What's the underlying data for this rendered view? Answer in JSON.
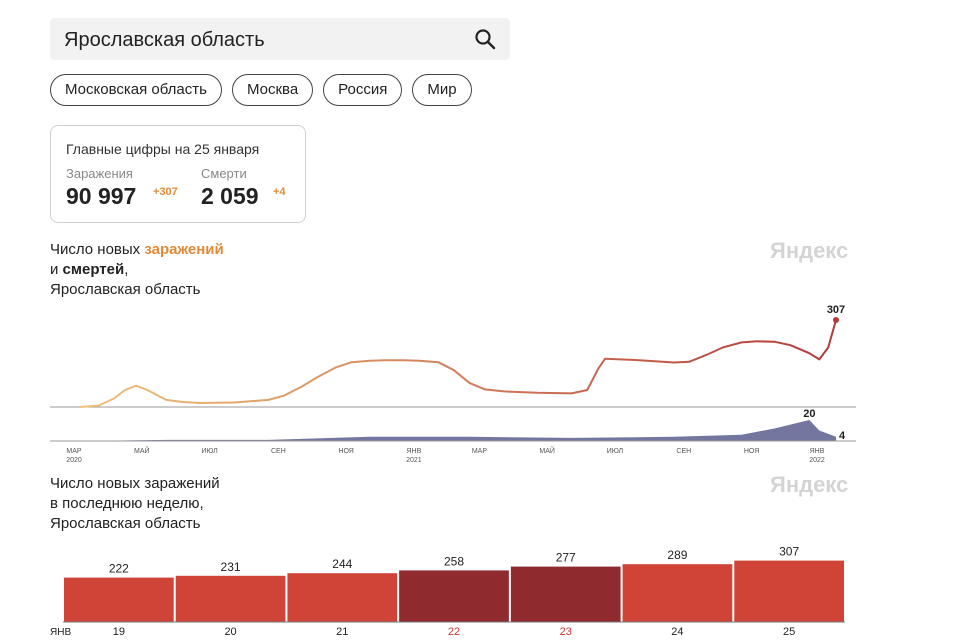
{
  "search": {
    "value": "Ярославская область"
  },
  "chips": [
    "Московская область",
    "Москва",
    "Россия",
    "Мир"
  ],
  "summary": {
    "title": "Главные цифры на 25 января",
    "infections": {
      "label": "Заражения",
      "value": "90 997",
      "delta": "+307"
    },
    "deaths": {
      "label": "Смерти",
      "value": "2 059",
      "delta": "+4"
    }
  },
  "chart1": {
    "title_line1_prefix": "Число новых ",
    "title_line1_highlight": "заражений",
    "title_line2_prefix": "и ",
    "title_line2_highlight": "смертей",
    "title_line2_suffix": ",",
    "title_line3": "Ярославская область",
    "watermark": "Яндекс"
  },
  "chart2": {
    "title_line1": "Число новых заражений",
    "title_line2": "в последнюю неделю,",
    "title_line3": "Ярославская область",
    "watermark": "Яндекс"
  },
  "colors": {
    "infections_start": "#f0c27a",
    "infections_end": "#b23a3a",
    "deaths": "#5a5f8e",
    "bar_weekday": "#cf4436",
    "bar_weekend": "#8f2a2e",
    "weekend_label": "#cc3333"
  },
  "chart_data": [
    {
      "type": "line",
      "x_labels": [
        {
          "month": "МАР",
          "year": "2020"
        },
        {
          "month": "МАЙ",
          "year": ""
        },
        {
          "month": "ИЮЛ",
          "year": ""
        },
        {
          "month": "СЕН",
          "year": ""
        },
        {
          "month": "НОЯ",
          "year": ""
        },
        {
          "month": "ЯНВ",
          "year": "2021"
        },
        {
          "month": "МАР",
          "year": ""
        },
        {
          "month": "МАЙ",
          "year": ""
        },
        {
          "month": "ИЮЛ",
          "year": ""
        },
        {
          "month": "СЕН",
          "year": ""
        },
        {
          "month": "НОЯ",
          "year": ""
        },
        {
          "month": "ЯНВ",
          "year": "2022"
        }
      ],
      "series": [
        {
          "name": "Заражения",
          "x": [
            "2020-03-15",
            "2020-04-01",
            "2020-04-15",
            "2020-04-25",
            "2020-05-05",
            "2020-05-15",
            "2020-06-01",
            "2020-06-15",
            "2020-07-01",
            "2020-08-01",
            "2020-09-01",
            "2020-09-15",
            "2020-10-01",
            "2020-10-15",
            "2020-11-01",
            "2020-11-15",
            "2020-12-01",
            "2020-12-15",
            "2021-01-01",
            "2021-01-15",
            "2021-02-01",
            "2021-02-15",
            "2021-03-01",
            "2021-03-15",
            "2021-04-01",
            "2021-05-01",
            "2021-06-01",
            "2021-06-15",
            "2021-06-25",
            "2021-07-01",
            "2021-07-15",
            "2021-08-01",
            "2021-09-01",
            "2021-09-15",
            "2021-10-01",
            "2021-10-15",
            "2021-11-01",
            "2021-11-15",
            "2021-12-01",
            "2021-12-15",
            "2022-01-01",
            "2022-01-10",
            "2022-01-18",
            "2022-01-25"
          ],
          "y": [
            0,
            5,
            30,
            60,
            75,
            60,
            25,
            18,
            14,
            16,
            25,
            40,
            72,
            105,
            140,
            158,
            163,
            165,
            165,
            163,
            158,
            130,
            85,
            62,
            55,
            50,
            48,
            60,
            135,
            170,
            168,
            165,
            157,
            160,
            185,
            210,
            228,
            232,
            230,
            218,
            190,
            168,
            210,
            307
          ]
        },
        {
          "name": "Смерти",
          "x": [
            "2020-03-15",
            "2020-06-01",
            "2020-09-01",
            "2020-12-01",
            "2021-03-01",
            "2021-06-01",
            "2021-09-01",
            "2021-11-01",
            "2021-12-01",
            "2022-01-01",
            "2022-01-10",
            "2022-01-25"
          ],
          "y": [
            0,
            1,
            1,
            4,
            4,
            3,
            4,
            6,
            12,
            20,
            10,
            4
          ],
          "labels": [
            "20",
            "4"
          ]
        }
      ],
      "end_label": "307"
    },
    {
      "type": "bar",
      "month_label": "ЯНВ",
      "categories": [
        "19",
        "20",
        "21",
        "22",
        "23",
        "24",
        "25"
      ],
      "values": [
        222,
        231,
        244,
        258,
        277,
        289,
        307
      ],
      "weekend": [
        false,
        false,
        false,
        true,
        true,
        false,
        false
      ],
      "ylim": [
        0,
        310
      ]
    }
  ]
}
